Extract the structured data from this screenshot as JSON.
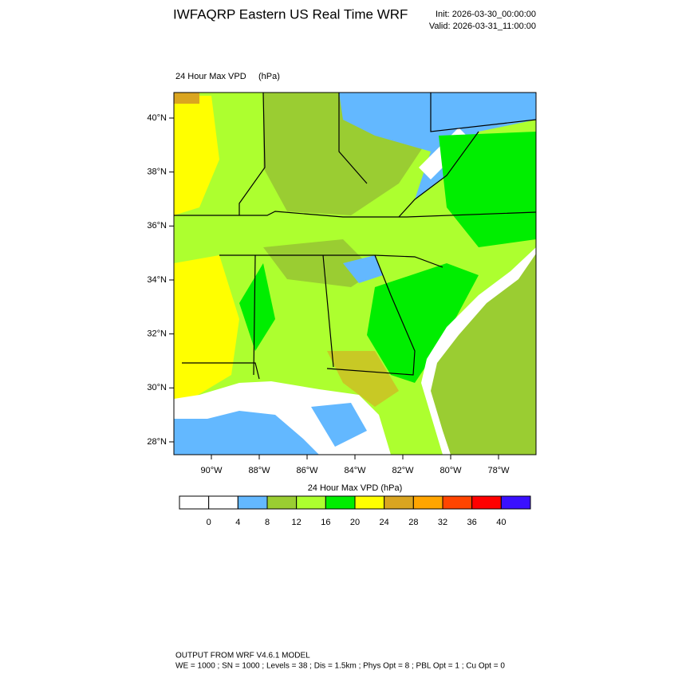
{
  "header": {
    "title": "IWFAQRP Eastern US Real Time WRF",
    "init": "Init: 2026-03-30_00:00:00",
    "valid": "Valid: 2026-03-31_11:00:00"
  },
  "map": {
    "field": "24 Hour Max VPD",
    "units": "(hPa)",
    "lat_ticks": [
      {
        "value": 40,
        "label": "40°N"
      },
      {
        "value": 38,
        "label": "38°N"
      },
      {
        "value": 36,
        "label": "36°N"
      },
      {
        "value": 34,
        "label": "34°N"
      },
      {
        "value": 32,
        "label": "32°N"
      },
      {
        "value": 30,
        "label": "30°N"
      },
      {
        "value": 28,
        "label": "28°N"
      }
    ],
    "lon_ticks": [
      {
        "value": -90,
        "label": "90°W"
      },
      {
        "value": -88,
        "label": "88°W"
      },
      {
        "value": -86,
        "label": "86°W"
      },
      {
        "value": -84,
        "label": "84°W"
      },
      {
        "value": -82,
        "label": "82°W"
      },
      {
        "value": -80,
        "label": "80°W"
      },
      {
        "value": -78,
        "label": "78°W"
      }
    ]
  },
  "colorbar": {
    "title": "24 Hour Max VPD  (hPa)",
    "colors": [
      "#ffffff",
      "#ffffff",
      "#63b8ff",
      "#9acd32",
      "#adff2f",
      "#00ee00",
      "#ffff00",
      "#daa520",
      "#ffa500",
      "#ff4500",
      "#ff0000",
      "#3a10ff"
    ],
    "levels": [
      0,
      4,
      8,
      12,
      16,
      20,
      24,
      28,
      32,
      36,
      40
    ]
  },
  "footer": {
    "line1": "OUTPUT FROM WRF V4.6.1 MODEL",
    "line2": "WE = 1000 ; SN = 1000 ; Levels = 38 ; Dis = 1.5km ; Phys Opt = 8 ; PBL Opt = 1 ; Cu Opt = 0"
  }
}
